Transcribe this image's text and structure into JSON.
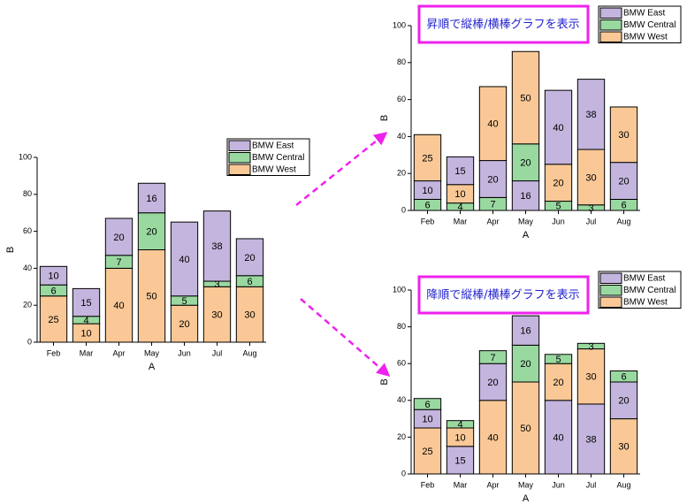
{
  "chart_data": [
    {
      "type": "stacked_bar",
      "x_label": "A",
      "y_label": "B",
      "categories": [
        "Feb",
        "Mar",
        "Apr",
        "May",
        "Jun",
        "Jul",
        "Aug"
      ],
      "series": [
        {
          "name": "BMW West",
          "color": "#f9c896",
          "values": [
            25,
            10,
            40,
            50,
            20,
            30,
            30
          ]
        },
        {
          "name": "BMW Central",
          "color": "#99d9a0",
          "values": [
            6,
            4,
            7,
            20,
            5,
            3,
            6
          ]
        },
        {
          "name": "BMW East",
          "color": "#c3b5dd",
          "values": [
            10,
            15,
            20,
            16,
            40,
            38,
            20
          ]
        }
      ],
      "ylim": [
        0,
        100
      ],
      "yticks": [
        0,
        20,
        40,
        60,
        80,
        100
      ]
    },
    {
      "type": "stacked_bar",
      "x_label": "A",
      "y_label": "B",
      "annotation": "昇順で縦棒/横棒グラフを表示",
      "stack_order": "ascending",
      "categories": [
        "Feb",
        "Mar",
        "Apr",
        "May",
        "Jun",
        "Jul",
        "Aug"
      ],
      "series": [
        {
          "name": "BMW West",
          "color": "#f9c896",
          "values": [
            25,
            10,
            40,
            50,
            20,
            30,
            30
          ]
        },
        {
          "name": "BMW Central",
          "color": "#99d9a0",
          "values": [
            6,
            4,
            7,
            20,
            5,
            3,
            6
          ]
        },
        {
          "name": "BMW East",
          "color": "#c3b5dd",
          "values": [
            10,
            15,
            20,
            16,
            40,
            38,
            20
          ]
        }
      ],
      "ylim": [
        0,
        100
      ],
      "yticks": [
        0,
        20,
        40,
        60,
        80,
        100
      ]
    },
    {
      "type": "stacked_bar",
      "x_label": "A",
      "y_label": "B",
      "annotation": "降順で縦棒/横棒グラフを表示",
      "stack_order": "descending",
      "categories": [
        "Feb",
        "Mar",
        "Apr",
        "May",
        "Jun",
        "Jul",
        "Aug"
      ],
      "series": [
        {
          "name": "BMW West",
          "color": "#f9c896",
          "values": [
            25,
            10,
            40,
            50,
            20,
            30,
            30
          ]
        },
        {
          "name": "BMW Central",
          "color": "#99d9a0",
          "values": [
            6,
            4,
            7,
            20,
            5,
            3,
            6
          ]
        },
        {
          "name": "BMW East",
          "color": "#c3b5dd",
          "values": [
            10,
            15,
            20,
            16,
            40,
            38,
            20
          ]
        }
      ],
      "ylim": [
        0,
        100
      ],
      "yticks": [
        0,
        20,
        40,
        60,
        80,
        100
      ]
    }
  ]
}
